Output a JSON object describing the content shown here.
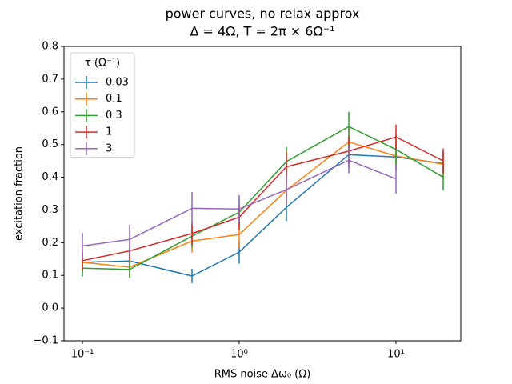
{
  "chart_data": {
    "type": "line",
    "title": "power curves, no relax approx",
    "subtitle": "Δ = 4Ω, T = 2π × 6Ω⁻¹",
    "x_label": "RMS noise Δω₀ (Ω)",
    "y_label": "excitation fraction",
    "legend_title": "τ (Ω⁻¹)",
    "legend_position": "upper left",
    "x_scale": "log",
    "x": [
      0.1,
      0.2,
      0.5,
      1,
      2,
      5,
      10,
      20
    ],
    "xlim": [
      0.0763,
      25.9
    ],
    "xticks": [
      {
        "value": 0.1,
        "label": "10⁻¹"
      },
      {
        "value": 1,
        "label": "10⁰"
      },
      {
        "value": 10,
        "label": "10¹"
      }
    ],
    "ylim": [
      -0.1,
      0.8
    ],
    "yticks": [
      {
        "value": -0.1,
        "label": "−0.1"
      },
      {
        "value": 0,
        "label": "0.0"
      },
      0.1,
      0.2,
      0.3,
      0.4,
      0.5,
      0.6,
      0.7,
      0.8
    ],
    "series": [
      {
        "name": "0.03",
        "color": "#1f77b4",
        "values": [
          0.14,
          0.144,
          0.098,
          0.171,
          0.308,
          0.469,
          0.462,
          0.442
        ],
        "errors": [
          0.03,
          0.03,
          0.022,
          0.035,
          0.042,
          0.04,
          0.04,
          0.035
        ]
      },
      {
        "name": "0.1",
        "color": "#ff7f0e",
        "values": [
          0.14,
          0.125,
          0.205,
          0.225,
          0.36,
          0.508,
          0.465,
          0.44
        ],
        "errors": [
          0.03,
          0.03,
          0.035,
          0.04,
          0.045,
          0.045,
          0.045,
          0.04
        ]
      },
      {
        "name": "0.3",
        "color": "#2ca02c",
        "values": [
          0.122,
          0.118,
          0.22,
          0.293,
          0.448,
          0.555,
          0.485,
          0.4
        ],
        "errors": [
          0.025,
          0.025,
          0.035,
          0.04,
          0.045,
          0.045,
          0.045,
          0.04
        ]
      },
      {
        "name": "1",
        "color": "#d62728",
        "values": [
          0.145,
          0.175,
          0.228,
          0.278,
          0.432,
          0.48,
          0.523,
          0.45
        ],
        "errors": [
          0.03,
          0.03,
          0.035,
          0.04,
          0.045,
          0.045,
          0.038,
          0.038
        ]
      },
      {
        "name": "3",
        "color": "#9467bd",
        "values": [
          0.19,
          0.21,
          0.305,
          0.303,
          0.362,
          0.452,
          0.395,
          null
        ],
        "errors": [
          0.04,
          0.045,
          0.05,
          0.042,
          0.045,
          0.04,
          0.045,
          null
        ]
      }
    ]
  }
}
